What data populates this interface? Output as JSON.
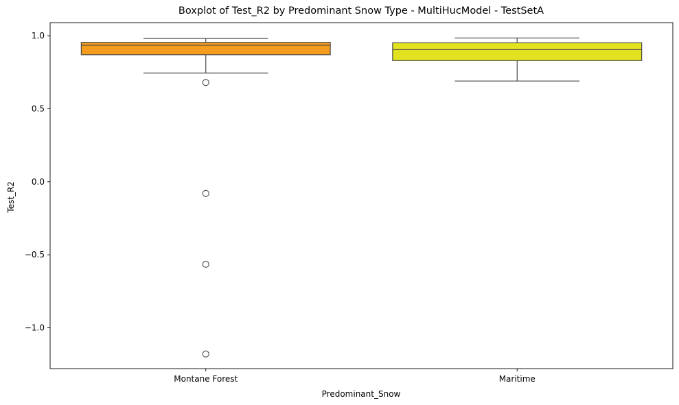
{
  "chart_data": {
    "type": "box",
    "title": "Boxplot of Test_R2 by Predominant Snow Type - MultiHucModel - TestSetA",
    "xlabel": "Predominant_Snow",
    "ylabel": "Test_R2",
    "ylim": [
      -1.28,
      1.09
    ],
    "yticks": [
      {
        "value": 1.0,
        "label": "1.0"
      },
      {
        "value": 0.5,
        "label": "0.5"
      },
      {
        "value": 0.0,
        "label": "0.0"
      },
      {
        "value": -0.5,
        "label": "−0.5"
      },
      {
        "value": -1.0,
        "label": "−1.0"
      }
    ],
    "grid": false,
    "categories": [
      "Montane Forest",
      "Maritime"
    ],
    "boxes": [
      {
        "category": "Montane Forest",
        "color": "#f39c1e",
        "whisker_low": 0.745,
        "q1": 0.87,
        "median": 0.935,
        "q3": 0.955,
        "whisker_high": 0.982,
        "outliers": [
          0.68,
          -0.08,
          -0.565,
          -1.18
        ]
      },
      {
        "category": "Maritime",
        "color": "#e2e21f",
        "whisker_low": 0.69,
        "q1": 0.83,
        "median": 0.905,
        "q3": 0.952,
        "whisker_high": 0.985,
        "outliers": []
      }
    ]
  }
}
